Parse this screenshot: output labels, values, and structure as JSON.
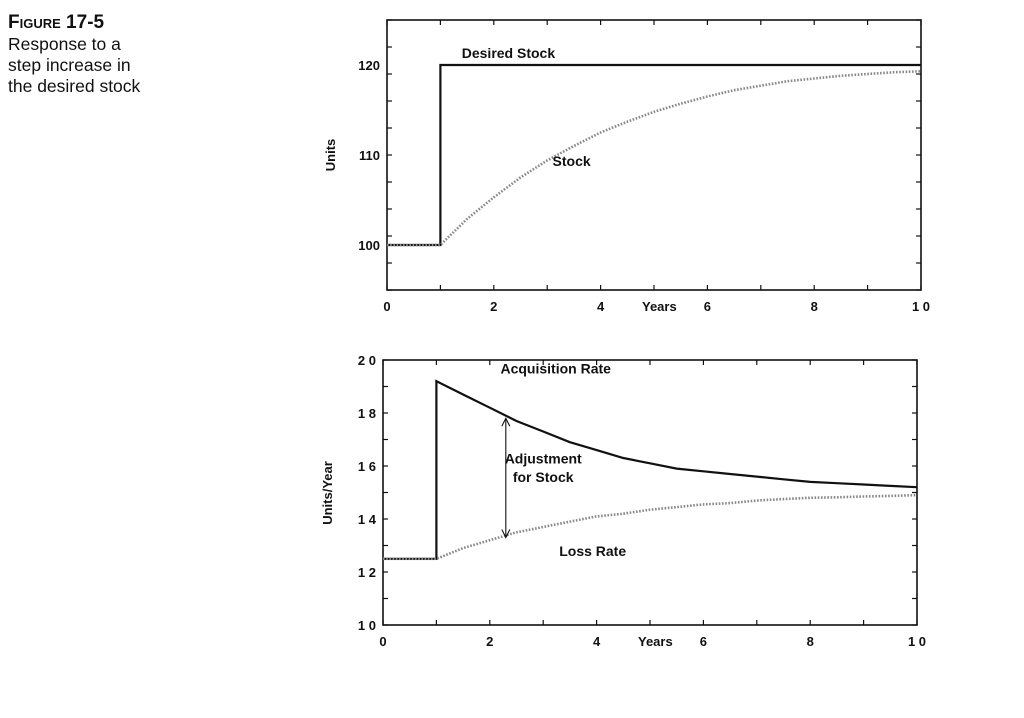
{
  "figure": {
    "label": "Figure 17-5",
    "caption": [
      "Response to a",
      "step increase in",
      "the desired stock"
    ]
  },
  "colors": {
    "line": "#111111",
    "dotted": "#888888"
  },
  "chart_data": [
    {
      "type": "line",
      "xlabel": "Years",
      "ylabel": "Units",
      "xlim": [
        0,
        10
      ],
      "ylim": [
        95,
        125
      ],
      "xticks": [
        "0",
        "2",
        "4",
        "Years",
        "6",
        "8",
        "1 0"
      ],
      "yticks": [
        "100",
        "110",
        "120"
      ],
      "series": [
        {
          "name": "Desired Stock",
          "style": "solid",
          "x": [
            0,
            1,
            1,
            10
          ],
          "y": [
            100,
            100,
            120,
            120
          ]
        },
        {
          "name": "Stock",
          "style": "dotted",
          "x": [
            0,
            1,
            1.5,
            2,
            2.5,
            3,
            3.5,
            4,
            4.5,
            5,
            5.5,
            6,
            6.5,
            7,
            7.5,
            8,
            8.5,
            9,
            9.5,
            10
          ],
          "y": [
            100,
            100,
            102.9,
            105.3,
            107.5,
            109.4,
            111.0,
            112.5,
            113.7,
            114.8,
            115.7,
            116.5,
            117.2,
            117.7,
            118.2,
            118.5,
            118.8,
            119.0,
            119.2,
            119.3
          ]
        }
      ],
      "annotations": [
        {
          "text": "Desired Stock",
          "x": 1.4,
          "y": 120.8
        },
        {
          "text": "Stock",
          "x": 3.1,
          "y": 108.8
        }
      ]
    },
    {
      "type": "line",
      "xlabel": "Years",
      "ylabel": "Units/Year",
      "xlim": [
        0,
        10
      ],
      "ylim": [
        10,
        20
      ],
      "xticks": [
        "0",
        "2",
        "4",
        "Years",
        "6",
        "8",
        "1 0"
      ],
      "yticks": [
        "1 0",
        "1 2",
        "1 4",
        "1 6",
        "1 8",
        "2 0"
      ],
      "series": [
        {
          "name": "Acquisition Rate",
          "style": "solid",
          "x": [
            0,
            1,
            1,
            1.5,
            2,
            2.5,
            3,
            3.5,
            4,
            4.5,
            5,
            5.5,
            6,
            6.5,
            7,
            7.5,
            8,
            8.5,
            9,
            9.5,
            10
          ],
          "y": [
            12.5,
            12.5,
            19.2,
            18.7,
            18.2,
            17.7,
            17.3,
            16.9,
            16.6,
            16.3,
            16.1,
            15.9,
            15.8,
            15.7,
            15.6,
            15.5,
            15.4,
            15.35,
            15.3,
            15.25,
            15.2
          ]
        },
        {
          "name": "Loss Rate",
          "style": "dotted",
          "x": [
            0,
            1,
            1.5,
            2,
            2.5,
            3,
            3.5,
            4,
            4.5,
            5,
            5.5,
            6,
            6.5,
            7,
            7.5,
            8,
            8.5,
            9,
            9.5,
            10
          ],
          "y": [
            12.5,
            12.5,
            12.9,
            13.2,
            13.5,
            13.7,
            13.9,
            14.1,
            14.2,
            14.35,
            14.45,
            14.55,
            14.6,
            14.7,
            14.75,
            14.8,
            14.82,
            14.85,
            14.87,
            14.9
          ]
        }
      ],
      "annotations": [
        {
          "text": "Acquisition Rate",
          "x": 2.2,
          "y": 19.5
        },
        {
          "text": "Adjustment",
          "x": 3.0,
          "y": 16.1
        },
        {
          "text": "for Stock",
          "x": 3.0,
          "y": 15.4
        },
        {
          "text": "Loss Rate",
          "x": 3.3,
          "y": 12.6
        }
      ],
      "arrow": {
        "x": 2.3,
        "y_from": 13.3,
        "y_to": 17.8
      }
    }
  ]
}
